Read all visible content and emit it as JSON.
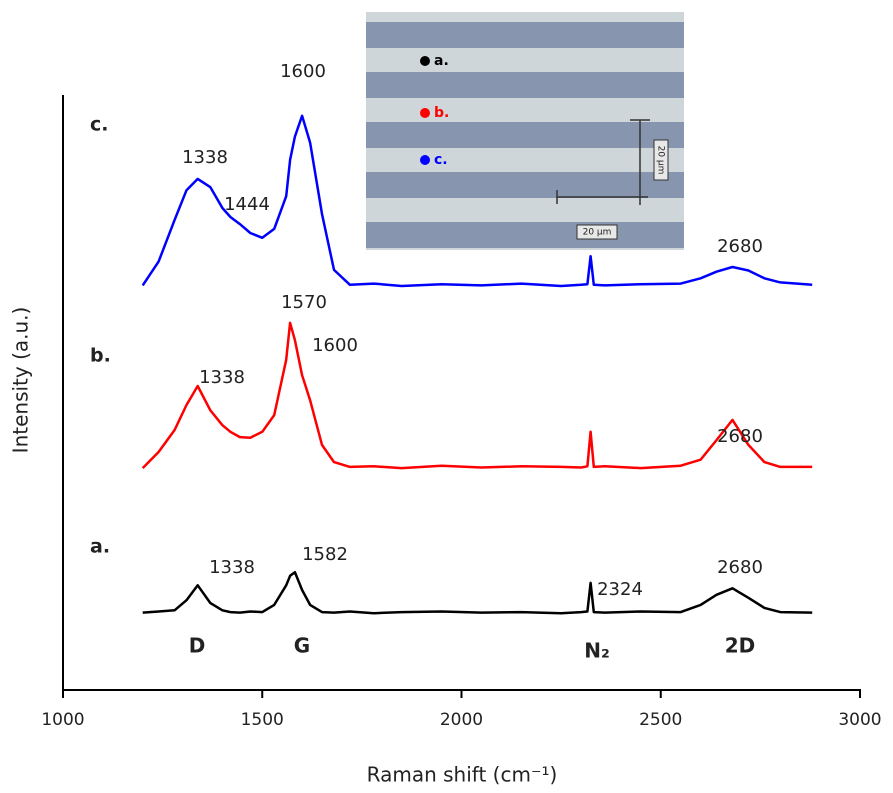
{
  "chart_data": {
    "type": "line",
    "x_label": "Raman shift (cm⁻¹)",
    "y_label": "Intensity (a.u.)",
    "xlim": [
      1000,
      3000
    ],
    "xticks": [
      1000,
      1500,
      2000,
      2500,
      3000
    ],
    "ylim": [
      0,
      100
    ],
    "x": [
      1200,
      1240,
      1280,
      1310,
      1338,
      1370,
      1400,
      1420,
      1444,
      1470,
      1500,
      1530,
      1560,
      1570,
      1582,
      1600,
      1620,
      1650,
      1680,
      1720,
      1780,
      1850,
      1950,
      2050,
      2150,
      2250,
      2300,
      2316,
      2324,
      2332,
      2360,
      2450,
      2550,
      2600,
      2640,
      2680,
      2720,
      2760,
      2800,
      2880
    ],
    "series": [
      {
        "name": "a.",
        "color": "#000000",
        "values": [
          13,
          13.2,
          13.4,
          15.1,
          17.6,
          14.6,
          13.4,
          13.1,
          13,
          13.2,
          13.1,
          14.3,
          17.6,
          19.2,
          19.8,
          16.8,
          14.3,
          13.1,
          13,
          13.2,
          12.9,
          13.1,
          13.2,
          13,
          13.1,
          12.9,
          13.1,
          13.2,
          18,
          13.1,
          13,
          13.2,
          13.1,
          14.3,
          16,
          17.1,
          15.5,
          13.8,
          13.1,
          13
        ]
      },
      {
        "name": "b.",
        "color": "#ff0000",
        "values": [
          37.3,
          40,
          43.7,
          47.9,
          51.1,
          47,
          44.5,
          43.4,
          42.5,
          42.4,
          43.4,
          46.2,
          55.5,
          61.7,
          58.8,
          52.9,
          48.7,
          41.2,
          38.3,
          37.5,
          37.6,
          37.3,
          37.7,
          37.4,
          37.6,
          37.5,
          37.4,
          37.6,
          43.4,
          37.5,
          37.6,
          37.3,
          37.7,
          38.7,
          42,
          45.4,
          41.2,
          38.3,
          37.5,
          37.5
        ]
      },
      {
        "name": "c.",
        "color": "#0000ff",
        "values": [
          68,
          72,
          79,
          84,
          85.9,
          84.5,
          81,
          79.5,
          78.3,
          76.8,
          76,
          77.5,
          83,
          89.1,
          93,
          96.5,
          92,
          80,
          70.6,
          68.1,
          68.3,
          67.9,
          68.2,
          68,
          68.3,
          67.9,
          68.1,
          68.2,
          72.9,
          68.1,
          68,
          68.2,
          68.3,
          69.2,
          70.3,
          71.1,
          70.5,
          69.2,
          68.5,
          68.1
        ]
      }
    ],
    "annotations": [
      "1600",
      "1338",
      "1444",
      "2680",
      "1570",
      "1600",
      "1338",
      "2680",
      "1338",
      "1582",
      "2324",
      "2680"
    ],
    "band_labels": [
      "D",
      "G",
      "N₂",
      "2D"
    ],
    "inset": {
      "markers": [
        "a.",
        "b.",
        "c."
      ],
      "scale_labels": [
        "20 µm",
        "20 µm"
      ]
    }
  }
}
